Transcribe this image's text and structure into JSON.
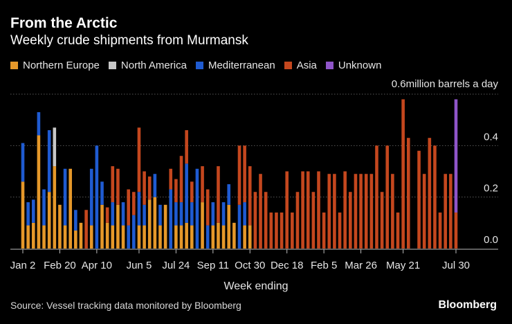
{
  "header": {
    "title": "From the Arctic",
    "subtitle": "Weekly crude shipments from Murmansk"
  },
  "footer": {
    "source": "Source: Vessel tracking data monitored by Bloomberg",
    "brand": "Bloomberg"
  },
  "colors": {
    "northern_europe": "#e5982a",
    "north_america": "#c8c8c8",
    "mediterranean": "#1f5bd1",
    "asia": "#c4471e",
    "unknown": "#8f55c9",
    "grid": "#5a5a5a",
    "text": "#e6e6e6"
  },
  "chart_data": {
    "type": "bar",
    "stacked": true,
    "title": "From the Arctic",
    "subtitle": "Weekly crude shipments from Murmansk",
    "xlabel": "Week ending",
    "ylabel": "",
    "unit_label": "million barrels a day",
    "ylim": [
      0,
      0.6
    ],
    "y_ticks": [
      0.0,
      0.2,
      0.4,
      0.6
    ],
    "y_tick_labels": [
      "0.0",
      "0.2",
      "0.4",
      "0.6"
    ],
    "grid": true,
    "legend_position": "top-left",
    "x_tick_labels": [
      {
        "index": 0,
        "label": "Jan 2"
      },
      {
        "index": 7,
        "label": "Feb 20"
      },
      {
        "index": 14,
        "label": "Apr 10"
      },
      {
        "index": 22,
        "label": "Jun 5"
      },
      {
        "index": 29,
        "label": "Jul 24"
      },
      {
        "index": 36,
        "label": "Sep 11"
      },
      {
        "index": 43,
        "label": "Oct 30"
      },
      {
        "index": 50,
        "label": "Dec 18"
      },
      {
        "index": 57,
        "label": "Feb 5"
      },
      {
        "index": 64,
        "label": "Mar 26"
      },
      {
        "index": 72,
        "label": "May 21"
      },
      {
        "index": 82,
        "label": "Jul 30"
      }
    ],
    "series": [
      {
        "name": "Northern Europe",
        "values": [
          0.26,
          0.09,
          0.1,
          0.44,
          0.09,
          0.22,
          0.32,
          0.17,
          0.09,
          0.31,
          0.07,
          0.1,
          0,
          0.09,
          0,
          0.17,
          0.1,
          0.09,
          0.17,
          0.09,
          0,
          0,
          0.09,
          0.09,
          0.19,
          0.2,
          0.09,
          0.17,
          0,
          0.09,
          0.09,
          0.1,
          0.09,
          0,
          0.18,
          0,
          0.09,
          0.1,
          0.09,
          0.17,
          0.1,
          0,
          0.09,
          0.09,
          0,
          0,
          0,
          0,
          0,
          0,
          0,
          0,
          0,
          0,
          0,
          0,
          0,
          0,
          0,
          0,
          0,
          0,
          0,
          0,
          0,
          0,
          0,
          0,
          0,
          0,
          0,
          0,
          0,
          0,
          0,
          0,
          0,
          0,
          0,
          0,
          0,
          0,
          0
        ]
      },
      {
        "name": "North America",
        "values": [
          0,
          0,
          0,
          0,
          0,
          0,
          0.15,
          0,
          0,
          0,
          0,
          0,
          0,
          0,
          0,
          0,
          0,
          0,
          0,
          0,
          0,
          0,
          0,
          0,
          0,
          0,
          0,
          0,
          0,
          0,
          0,
          0,
          0,
          0,
          0,
          0,
          0,
          0,
          0,
          0,
          0,
          0,
          0,
          0,
          0,
          0,
          0,
          0,
          0,
          0,
          0,
          0,
          0,
          0,
          0,
          0,
          0,
          0,
          0,
          0,
          0,
          0,
          0,
          0,
          0,
          0,
          0,
          0,
          0,
          0,
          0,
          0,
          0,
          0,
          0,
          0,
          0,
          0,
          0,
          0,
          0,
          0,
          0
        ]
      },
      {
        "name": "Mediterranean",
        "values": [
          0.15,
          0.09,
          0.09,
          0.09,
          0.14,
          0.24,
          0,
          0,
          0.22,
          0,
          0.08,
          0,
          0,
          0.22,
          0.4,
          0.09,
          0,
          0.09,
          0,
          0.09,
          0.09,
          0.13,
          0.13,
          0.08,
          0,
          0.09,
          0.08,
          0,
          0.23,
          0.09,
          0.09,
          0.23,
          0.09,
          0.31,
          0,
          0.09,
          0.09,
          0,
          0.09,
          0.08,
          0,
          0.17,
          0.09,
          0,
          0,
          0,
          0,
          0,
          0,
          0,
          0,
          0,
          0,
          0,
          0,
          0,
          0,
          0,
          0,
          0,
          0,
          0,
          0,
          0,
          0,
          0,
          0,
          0,
          0,
          0,
          0,
          0,
          0,
          0,
          0,
          0,
          0,
          0,
          0,
          0,
          0,
          0,
          0
        ]
      },
      {
        "name": "Asia",
        "values": [
          0,
          0,
          0,
          0,
          0,
          0,
          0,
          0,
          0,
          0,
          0,
          0,
          0.15,
          0,
          0,
          0,
          0.06,
          0.14,
          0.14,
          0,
          0.14,
          0.09,
          0.25,
          0.13,
          0.09,
          0,
          0,
          0,
          0.08,
          0.09,
          0.18,
          0.13,
          0.08,
          0,
          0.14,
          0.14,
          0,
          0.22,
          0,
          0,
          0,
          0.23,
          0.22,
          0.23,
          0.22,
          0.29,
          0.22,
          0.14,
          0.14,
          0.14,
          0.3,
          0.14,
          0.22,
          0.3,
          0.3,
          0.22,
          0.3,
          0.14,
          0.29,
          0.29,
          0.14,
          0.3,
          0.22,
          0.29,
          0.29,
          0.29,
          0.29,
          0.4,
          0.22,
          0.4,
          0.29,
          0.14,
          0.58,
          0.43,
          0,
          0.38,
          0.29,
          0.43,
          0.4,
          0.14,
          0.29,
          0.29,
          0.14
        ]
      },
      {
        "name": "Unknown",
        "values": [
          0,
          0,
          0,
          0,
          0,
          0,
          0,
          0,
          0,
          0,
          0,
          0,
          0,
          0,
          0,
          0,
          0,
          0,
          0,
          0,
          0,
          0,
          0,
          0,
          0,
          0,
          0,
          0,
          0,
          0,
          0,
          0,
          0,
          0,
          0,
          0,
          0,
          0,
          0,
          0,
          0,
          0,
          0,
          0,
          0,
          0,
          0,
          0,
          0,
          0,
          0,
          0,
          0,
          0,
          0,
          0,
          0,
          0,
          0,
          0,
          0,
          0,
          0,
          0,
          0,
          0,
          0,
          0,
          0,
          0,
          0,
          0,
          0,
          0,
          0,
          0,
          0,
          0,
          0,
          0,
          0,
          0,
          0.44
        ]
      }
    ]
  }
}
